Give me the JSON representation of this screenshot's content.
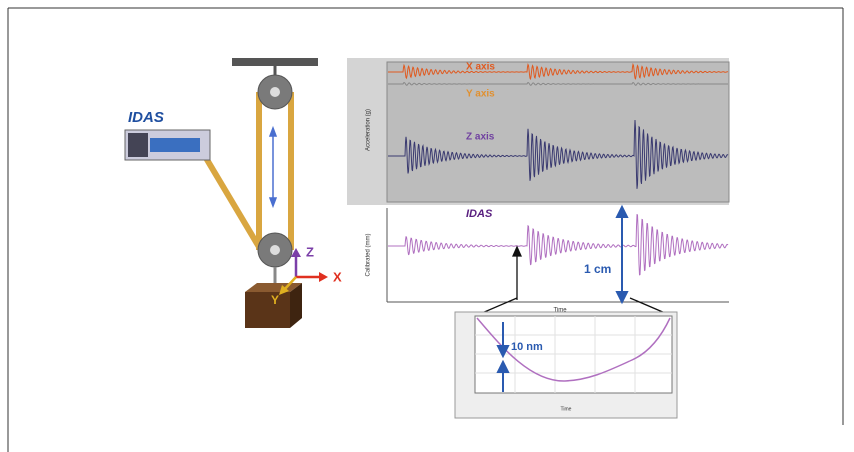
{
  "setup": {
    "logo": "IDAS",
    "axis_z": "Z",
    "axis_x": "X",
    "axis_y": "Y"
  },
  "upper_chart": {
    "y_label": "Acceleration (g)",
    "trace_x": "X axis",
    "trace_y": "Y axis",
    "trace_z": "Z axis"
  },
  "lower_chart": {
    "logo": "IDAS",
    "y_label": "Calibrated (mm)",
    "x_label": "Time",
    "annotation": "1 cm"
  },
  "inset": {
    "annotation": "10 nm",
    "x_label": "Time"
  }
}
